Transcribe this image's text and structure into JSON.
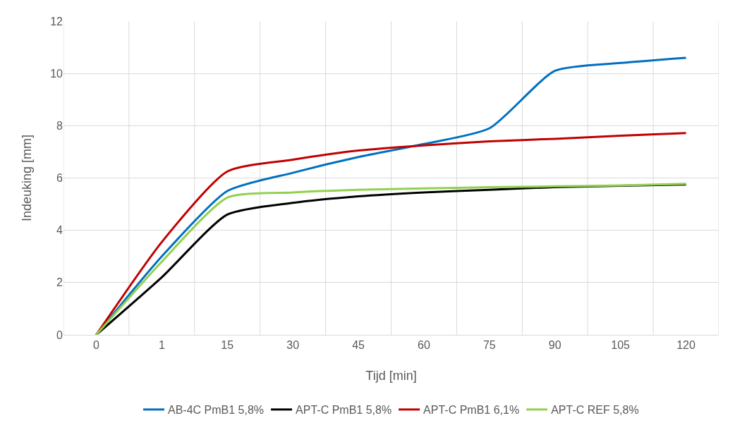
{
  "chart_data": {
    "type": "line",
    "xlabel": "Tijd [min]",
    "ylabel": "Indeuking [mm]",
    "categories": [
      "0",
      "1",
      "15",
      "30",
      "45",
      "60",
      "75",
      "90",
      "105",
      "120"
    ],
    "series": [
      {
        "name": "AB-4C PmB1 5,8%",
        "color": "#0070c0",
        "values": [
          0,
          3.0,
          5.5,
          6.2,
          6.8,
          7.3,
          7.9,
          10.1,
          10.4,
          10.6
        ]
      },
      {
        "name": "APT-C PmB1 5,8%",
        "color": "#000000",
        "values": [
          0,
          2.2,
          4.6,
          5.05,
          5.3,
          5.45,
          5.55,
          5.65,
          5.7,
          5.75
        ]
      },
      {
        "name": "APT-C PmB1 6,1%",
        "color": "#c00000",
        "values": [
          0,
          3.55,
          6.25,
          6.7,
          7.05,
          7.25,
          7.4,
          7.5,
          7.62,
          7.72
        ]
      },
      {
        "name": "APT-C REF 5,8%",
        "color": "#92d050",
        "values": [
          0,
          2.8,
          5.25,
          5.45,
          5.55,
          5.6,
          5.65,
          5.68,
          5.72,
          5.78
        ]
      }
    ],
    "ylim": [
      0,
      12
    ],
    "yticks": [
      0,
      2,
      4,
      6,
      8,
      10,
      12
    ],
    "grid": true,
    "legend": "bottom",
    "marker": "none",
    "line_style": "solid"
  }
}
